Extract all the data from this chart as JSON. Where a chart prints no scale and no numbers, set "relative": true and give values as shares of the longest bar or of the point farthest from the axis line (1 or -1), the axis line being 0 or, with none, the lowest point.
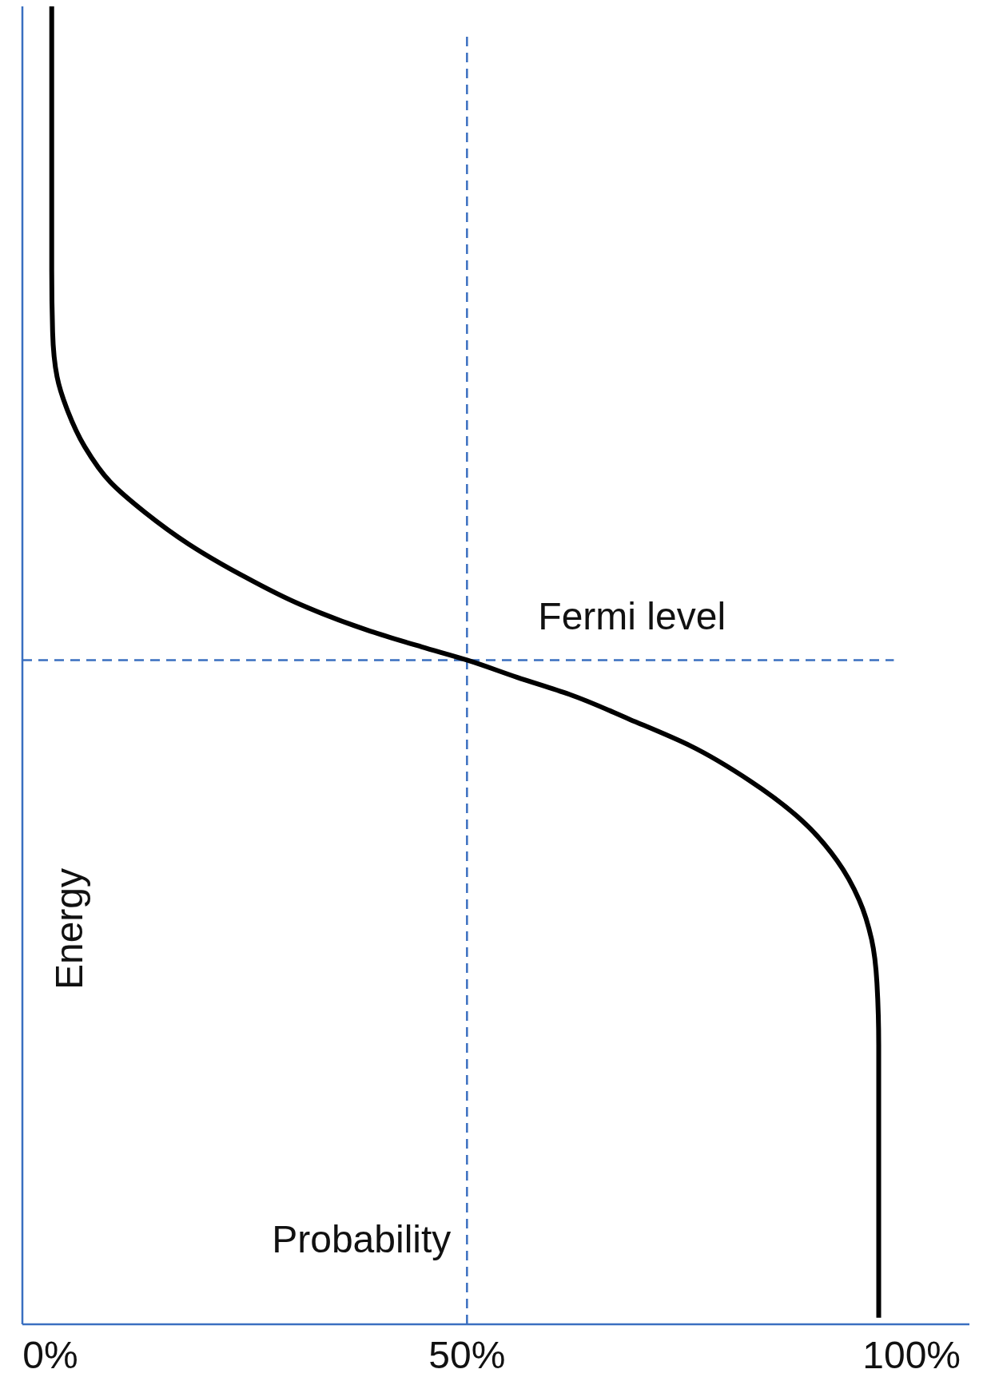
{
  "chart_data": {
    "type": "line",
    "relative": true,
    "xlabel": "Probability",
    "ylabel": "Energy",
    "xlim": [
      0,
      106.5
    ],
    "xticks": [
      {
        "value": 0,
        "label": "0%"
      },
      {
        "value": 50,
        "label": "50%"
      },
      {
        "value": 100,
        "label": "100%"
      }
    ],
    "series": [
      {
        "color": "#000000",
        "x": [
          3.3,
          3.3,
          3.4,
          3.9,
          5.1,
          7.0,
          9.9,
          13.8,
          18.7,
          24.5,
          31.3,
          39.1,
          44.9,
          50,
          55.6,
          61.5,
          68.3,
          75.1,
          81.9,
          87.7,
          91.6,
          94.1,
          95.5,
          96.1,
          96.3,
          96.3
        ],
        "values": [
          1,
          0.8,
          0.753,
          0.719,
          0.693,
          0.666,
          0.639,
          0.616,
          0.592,
          0.569,
          0.546,
          0.526,
          0.514,
          0.504,
          0.491,
          0.478,
          0.459,
          0.439,
          0.412,
          0.382,
          0.352,
          0.322,
          0.292,
          0.259,
          0.212,
          0.005
        ]
      }
    ],
    "ref_lines": [
      {
        "axis": "x",
        "value": 50,
        "color": "#3a6fc0",
        "line_style": "dashed"
      },
      {
        "axis": "y",
        "value": 0.504,
        "label": "Fermi level",
        "color": "#3a6fc0",
        "line_style": "dashed"
      }
    ],
    "grid": false,
    "marker": "none",
    "line_style": "solid"
  }
}
